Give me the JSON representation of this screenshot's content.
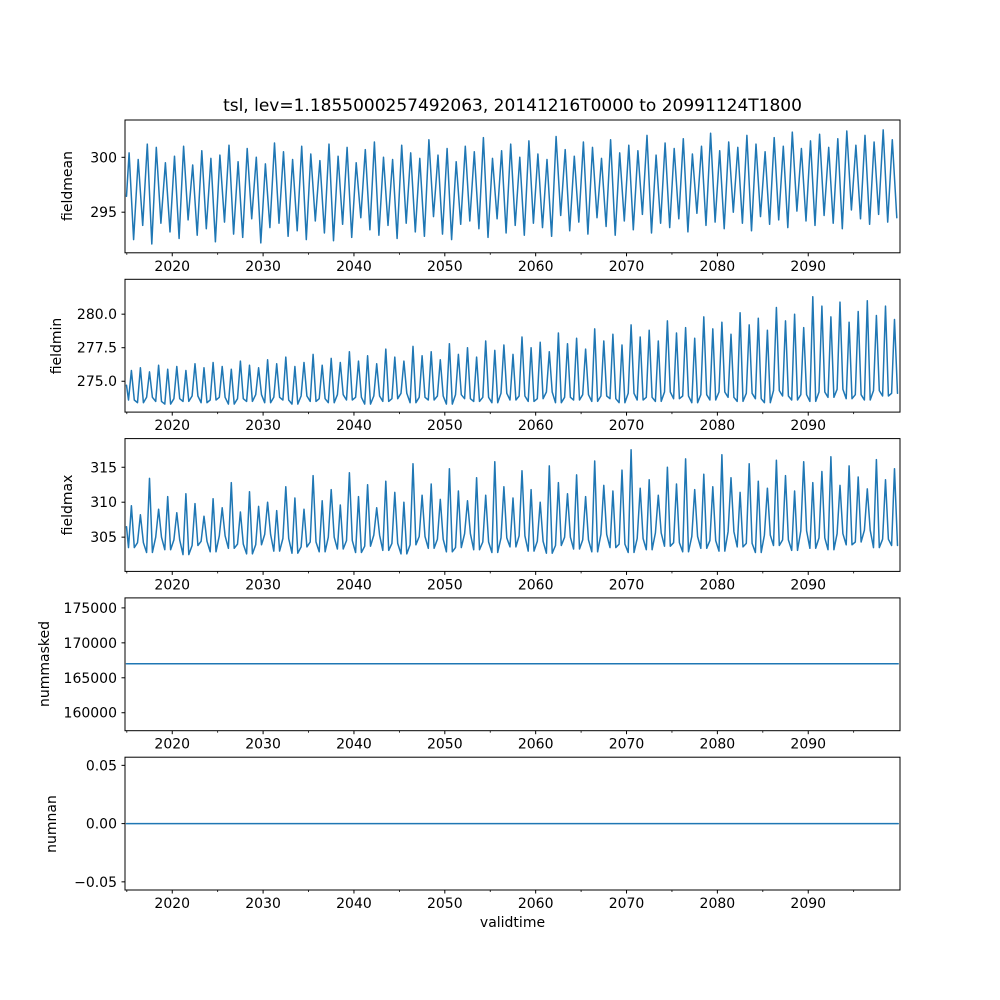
{
  "title": "tsl, lev=1.1855000257492063, 20141216T0000 to 20991124T1800",
  "xlabel": "validtime",
  "line_color": "#1f77b4",
  "frame_color": "#000000",
  "background_color": "#ffffff",
  "chart_data": {
    "type": "line",
    "title": "tsl, lev=1.1855000257492063, 20141216T0000 to 20991124T1800",
    "xlabel": "validtime",
    "grid": false,
    "legend": false,
    "x_axis": {
      "label": "validtime",
      "xlim": [
        2014.8,
        2100.1
      ],
      "start_year": 2015,
      "data_start": 2014.96,
      "data_end": 2099.9,
      "major_ticks": [
        2020,
        2030,
        2040,
        2050,
        2060,
        2070,
        2080,
        2090
      ],
      "major_labels": [
        "2020",
        "2030",
        "2040",
        "2050",
        "2060",
        "2070",
        "2080",
        "2090"
      ],
      "minor_ticks": [
        2015,
        2025,
        2035,
        2045,
        2055,
        2065,
        2075,
        2085,
        2095
      ]
    },
    "panels": [
      {
        "ylabel": "fieldmean",
        "ylim": [
          291.3,
          303.4
        ],
        "ytick_values": [
          295,
          300
        ],
        "ytick_labels": [
          "295",
          "300"
        ],
        "waveform": "triangle",
        "annual_peaks": [
          300.4,
          299.8,
          301.2,
          300.9,
          299.5,
          300.1,
          301.0,
          299.3,
          300.6,
          299.9,
          300.2,
          301.1,
          299.6,
          300.8,
          300.0,
          299.4,
          301.3,
          300.5,
          299.8,
          301.0,
          300.3,
          299.7,
          301.2,
          300.1,
          300.9,
          299.5,
          300.7,
          301.4,
          300.0,
          299.8,
          301.1,
          300.4,
          299.9,
          301.6,
          300.2,
          300.8,
          299.6,
          301.0,
          300.5,
          301.8,
          299.9,
          300.6,
          301.2,
          300.0,
          301.5,
          300.3,
          299.8,
          301.9,
          300.7,
          300.1,
          301.4,
          300.9,
          299.9,
          301.6,
          300.4,
          301.1,
          300.6,
          302.0,
          300.2,
          301.3,
          300.8,
          301.7,
          300.3,
          301.0,
          302.2,
          300.6,
          301.4,
          300.9,
          302.0,
          301.2,
          300.5,
          301.8,
          301.0,
          302.3,
          300.8,
          301.5,
          302.1,
          300.9,
          301.7,
          302.4,
          301.1,
          302.0,
          301.4,
          302.5,
          301.6
        ],
        "annual_troughs": [
          292.5,
          293.8,
          292.1,
          294.0,
          293.2,
          292.6,
          294.3,
          292.9,
          293.5,
          292.3,
          294.1,
          293.0,
          292.7,
          294.4,
          292.2,
          293.6,
          294.0,
          292.8,
          293.3,
          292.5,
          294.2,
          293.1,
          292.4,
          293.9,
          292.7,
          294.5,
          293.4,
          292.9,
          293.8,
          292.6,
          294.0,
          293.2,
          292.8,
          294.6,
          293.0,
          292.5,
          293.9,
          294.2,
          293.5,
          292.7,
          294.4,
          293.1,
          293.8,
          292.9,
          294.0,
          293.6,
          292.8,
          294.7,
          293.3,
          294.1,
          293.0,
          294.5,
          293.7,
          292.9,
          294.2,
          293.4,
          294.8,
          293.1,
          294.0,
          293.6,
          294.4,
          293.2,
          294.9,
          293.8,
          294.1,
          293.5,
          295.0,
          294.0,
          293.3,
          294.6,
          293.9,
          294.3,
          293.6,
          295.1,
          294.2,
          293.8,
          294.7,
          294.0,
          293.5,
          295.2,
          294.4,
          293.9,
          294.8,
          294.1,
          294.5
        ]
      },
      {
        "ylabel": "fieldmin",
        "ylim": [
          272.7,
          282.6
        ],
        "ytick_values": [
          275.0,
          277.5,
          280.0
        ],
        "ytick_labels": [
          "275.0",
          "277.5",
          "280.0"
        ],
        "waveform": "spike",
        "annual_peaks": [
          275.8,
          276.0,
          275.7,
          276.2,
          275.9,
          276.1,
          275.8,
          276.3,
          276.0,
          276.4,
          276.1,
          275.9,
          276.5,
          276.2,
          276.0,
          276.6,
          276.3,
          276.8,
          276.1,
          276.4,
          277.0,
          276.2,
          276.7,
          276.4,
          277.2,
          276.5,
          276.9,
          276.3,
          277.4,
          276.8,
          276.5,
          277.6,
          276.9,
          277.2,
          276.6,
          277.8,
          277.0,
          277.5,
          276.8,
          278.0,
          277.3,
          277.7,
          277.0,
          278.3,
          277.5,
          277.9,
          277.2,
          278.6,
          277.8,
          278.2,
          277.4,
          278.9,
          278.0,
          278.5,
          277.7,
          279.2,
          278.3,
          278.8,
          278.0,
          279.5,
          278.6,
          279.0,
          278.2,
          279.8,
          278.9,
          279.4,
          278.5,
          280.1,
          279.2,
          279.7,
          278.8,
          280.5,
          279.5,
          280.0,
          279.0,
          281.3,
          280.6,
          279.8,
          280.9,
          279.4,
          280.2,
          281.0,
          279.9,
          280.6,
          279.6
        ],
        "annual_troughs": [
          273.6,
          273.4,
          273.8,
          273.5,
          273.3,
          273.7,
          273.5,
          273.9,
          273.4,
          273.6,
          273.8,
          273.3,
          273.7,
          273.5,
          274.0,
          273.4,
          273.8,
          273.6,
          273.3,
          273.9,
          273.5,
          273.7,
          273.4,
          274.0,
          273.6,
          273.8,
          273.3,
          273.9,
          273.5,
          273.7,
          274.1,
          273.4,
          273.8,
          273.6,
          273.9,
          273.3,
          274.0,
          273.7,
          273.5,
          273.8,
          273.4,
          274.1,
          273.6,
          273.9,
          273.5,
          273.7,
          274.2,
          273.4,
          273.8,
          273.6,
          274.0,
          273.5,
          273.9,
          273.7,
          273.4,
          274.1,
          273.6,
          273.8,
          273.5,
          274.2,
          273.7,
          273.9,
          273.4,
          274.0,
          273.6,
          274.2,
          273.8,
          273.5,
          274.1,
          273.7,
          273.4,
          274.3,
          273.9,
          273.6,
          274.0,
          273.5,
          274.2,
          273.8,
          274.4,
          273.7,
          274.0,
          273.6,
          274.3,
          273.9,
          274.1
        ]
      },
      {
        "ylabel": "fieldmax",
        "ylim": [
          300.1,
          319.1
        ],
        "ytick_values": [
          305,
          310,
          315
        ],
        "ytick_labels": [
          "305",
          "310",
          "315"
        ],
        "waveform": "spike",
        "annual_peaks": [
          309.5,
          308.2,
          313.4,
          309.0,
          310.8,
          308.5,
          311.2,
          309.8,
          308.0,
          310.5,
          309.2,
          312.8,
          308.6,
          311.5,
          309.4,
          310.0,
          308.8,
          312.2,
          310.6,
          309.0,
          313.8,
          310.2,
          311.8,
          309.6,
          314.2,
          310.8,
          312.5,
          309.2,
          313.0,
          311.4,
          310.0,
          315.5,
          311.0,
          312.6,
          310.4,
          314.8,
          311.6,
          310.2,
          313.5,
          311.0,
          315.8,
          312.2,
          310.6,
          314.5,
          311.8,
          310.0,
          315.2,
          312.8,
          311.2,
          313.9,
          310.8,
          315.9,
          312.4,
          311.6,
          314.6,
          317.5,
          312.0,
          313.2,
          311.0,
          315.0,
          312.6,
          316.2,
          311.8,
          314.0,
          312.2,
          316.8,
          313.5,
          311.4,
          315.5,
          313.0,
          312.0,
          316.0,
          313.8,
          311.6,
          315.8,
          312.8,
          314.4,
          316.5,
          312.4,
          315.2,
          313.6,
          311.9,
          316.1,
          313.2,
          314.8
        ],
        "annual_troughs": [
          303.5,
          304.2,
          302.8,
          305.0,
          303.2,
          304.6,
          302.5,
          303.8,
          304.4,
          302.9,
          305.2,
          303.4,
          304.0,
          302.6,
          303.9,
          305.4,
          303.0,
          304.8,
          302.7,
          303.6,
          304.3,
          302.9,
          305.0,
          303.3,
          304.5,
          302.8,
          303.7,
          305.3,
          303.1,
          304.1,
          302.6,
          303.9,
          305.1,
          303.4,
          304.7,
          302.9,
          303.5,
          305.5,
          303.2,
          304.3,
          302.8,
          304.9,
          303.6,
          305.2,
          303.0,
          304.4,
          302.7,
          303.8,
          305.0,
          303.3,
          304.6,
          302.9,
          305.4,
          303.5,
          304.0,
          302.8,
          304.8,
          303.2,
          305.6,
          303.7,
          304.2,
          302.9,
          305.1,
          303.4,
          304.5,
          303.0,
          305.8,
          303.6,
          304.1,
          302.8,
          305.3,
          303.8,
          304.6,
          303.1,
          305.9,
          303.4,
          304.9,
          303.2,
          305.5,
          303.9,
          304.3,
          306.0,
          303.5,
          304.7,
          303.8
        ]
      },
      {
        "ylabel": "nummasked",
        "ylim": [
          157430,
          176430
        ],
        "ytick_values": [
          160000,
          165000,
          170000,
          175000
        ],
        "ytick_labels": [
          "160000",
          "165000",
          "170000",
          "175000"
        ],
        "constant_value": 167000
      },
      {
        "ylabel": "numnan",
        "ylim": [
          -0.057,
          0.057
        ],
        "ytick_values": [
          -0.05,
          0.0,
          0.05
        ],
        "ytick_labels": [
          "−0.05",
          "0.00",
          "0.05"
        ],
        "constant_value": 0
      }
    ]
  }
}
